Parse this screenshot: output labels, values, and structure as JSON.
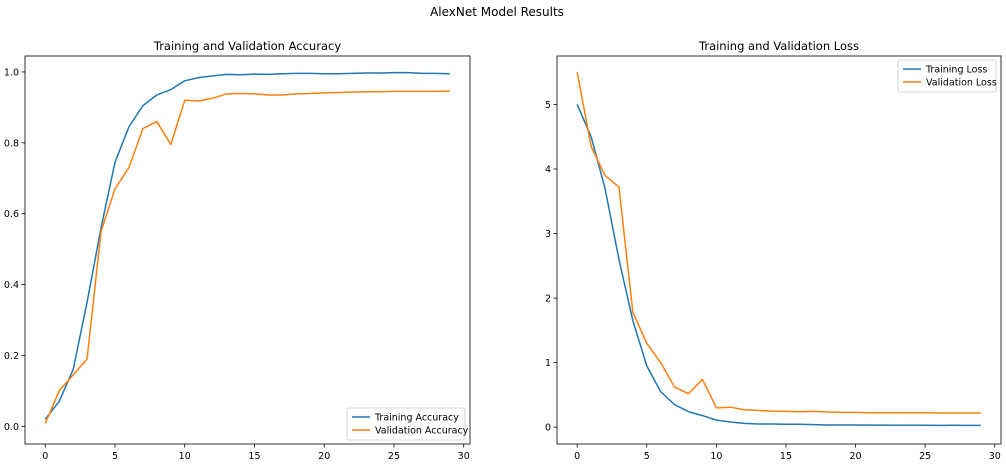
{
  "suptitle": "AlexNet Model Results",
  "chart_data": [
    {
      "type": "line",
      "title": "Training and Validation Accuracy",
      "xlabel": "",
      "ylabel": "",
      "xlim": [
        -1.45,
        30.45
      ],
      "ylim": [
        -0.05,
        1.045
      ],
      "xticks": [
        0,
        5,
        10,
        15,
        20,
        25,
        30
      ],
      "yticks": [
        0.0,
        0.2,
        0.4,
        0.6,
        0.8,
        1.0
      ],
      "xtick_labels": [
        "0",
        "5",
        "10",
        "15",
        "20",
        "25",
        "30"
      ],
      "ytick_labels": [
        "0.0",
        "0.2",
        "0.4",
        "0.6",
        "0.8",
        "1.0"
      ],
      "legend_position": "lower-right",
      "grid": false,
      "x": [
        0,
        1,
        2,
        3,
        4,
        5,
        6,
        7,
        8,
        9,
        10,
        11,
        12,
        13,
        14,
        15,
        16,
        17,
        18,
        19,
        20,
        21,
        22,
        23,
        24,
        25,
        26,
        27,
        28,
        29
      ],
      "series": [
        {
          "name": "Training Accuracy",
          "color": "#1f77b4",
          "values": [
            0.02,
            0.07,
            0.16,
            0.35,
            0.56,
            0.745,
            0.845,
            0.905,
            0.935,
            0.95,
            0.975,
            0.984,
            0.989,
            0.993,
            0.992,
            0.994,
            0.993,
            0.995,
            0.996,
            0.996,
            0.995,
            0.995,
            0.996,
            0.997,
            0.997,
            0.998,
            0.998,
            0.996,
            0.996,
            0.995
          ]
        },
        {
          "name": "Validation Accuracy",
          "color": "#ff7f0e",
          "values": [
            0.008,
            0.1,
            0.145,
            0.19,
            0.55,
            0.67,
            0.73,
            0.84,
            0.86,
            0.795,
            0.92,
            0.918,
            0.926,
            0.938,
            0.939,
            0.938,
            0.935,
            0.935,
            0.938,
            0.939,
            0.941,
            0.942,
            0.943,
            0.944,
            0.944,
            0.945,
            0.945,
            0.945,
            0.945,
            0.946
          ]
        }
      ]
    },
    {
      "type": "line",
      "title": "Training and Validation Loss",
      "xlabel": "",
      "ylabel": "",
      "xlim": [
        -1.45,
        30.45
      ],
      "ylim": [
        -0.26,
        5.75
      ],
      "xticks": [
        0,
        5,
        10,
        15,
        20,
        25,
        30
      ],
      "yticks": [
        0,
        1,
        2,
        3,
        4,
        5
      ],
      "xtick_labels": [
        "0",
        "5",
        "10",
        "15",
        "20",
        "25",
        "30"
      ],
      "ytick_labels": [
        "0",
        "1",
        "2",
        "3",
        "4",
        "5"
      ],
      "legend_position": "upper-right",
      "grid": false,
      "x": [
        0,
        1,
        2,
        3,
        4,
        5,
        6,
        7,
        8,
        9,
        10,
        11,
        12,
        13,
        14,
        15,
        16,
        17,
        18,
        19,
        20,
        21,
        22,
        23,
        24,
        25,
        26,
        27,
        28,
        29
      ],
      "series": [
        {
          "name": "Training Loss",
          "color": "#1f77b4",
          "values": [
            5.0,
            4.5,
            3.7,
            2.6,
            1.65,
            0.95,
            0.55,
            0.35,
            0.24,
            0.18,
            0.11,
            0.08,
            0.06,
            0.05,
            0.05,
            0.045,
            0.045,
            0.04,
            0.035,
            0.035,
            0.035,
            0.033,
            0.032,
            0.03,
            0.03,
            0.03,
            0.028,
            0.03,
            0.028,
            0.028
          ]
        },
        {
          "name": "Validation Loss",
          "color": "#ff7f0e",
          "values": [
            5.5,
            4.35,
            3.9,
            3.72,
            1.78,
            1.3,
            1.0,
            0.62,
            0.52,
            0.74,
            0.3,
            0.31,
            0.27,
            0.26,
            0.25,
            0.245,
            0.24,
            0.245,
            0.235,
            0.23,
            0.23,
            0.225,
            0.225,
            0.225,
            0.225,
            0.225,
            0.22,
            0.22,
            0.22,
            0.22
          ]
        }
      ]
    }
  ]
}
